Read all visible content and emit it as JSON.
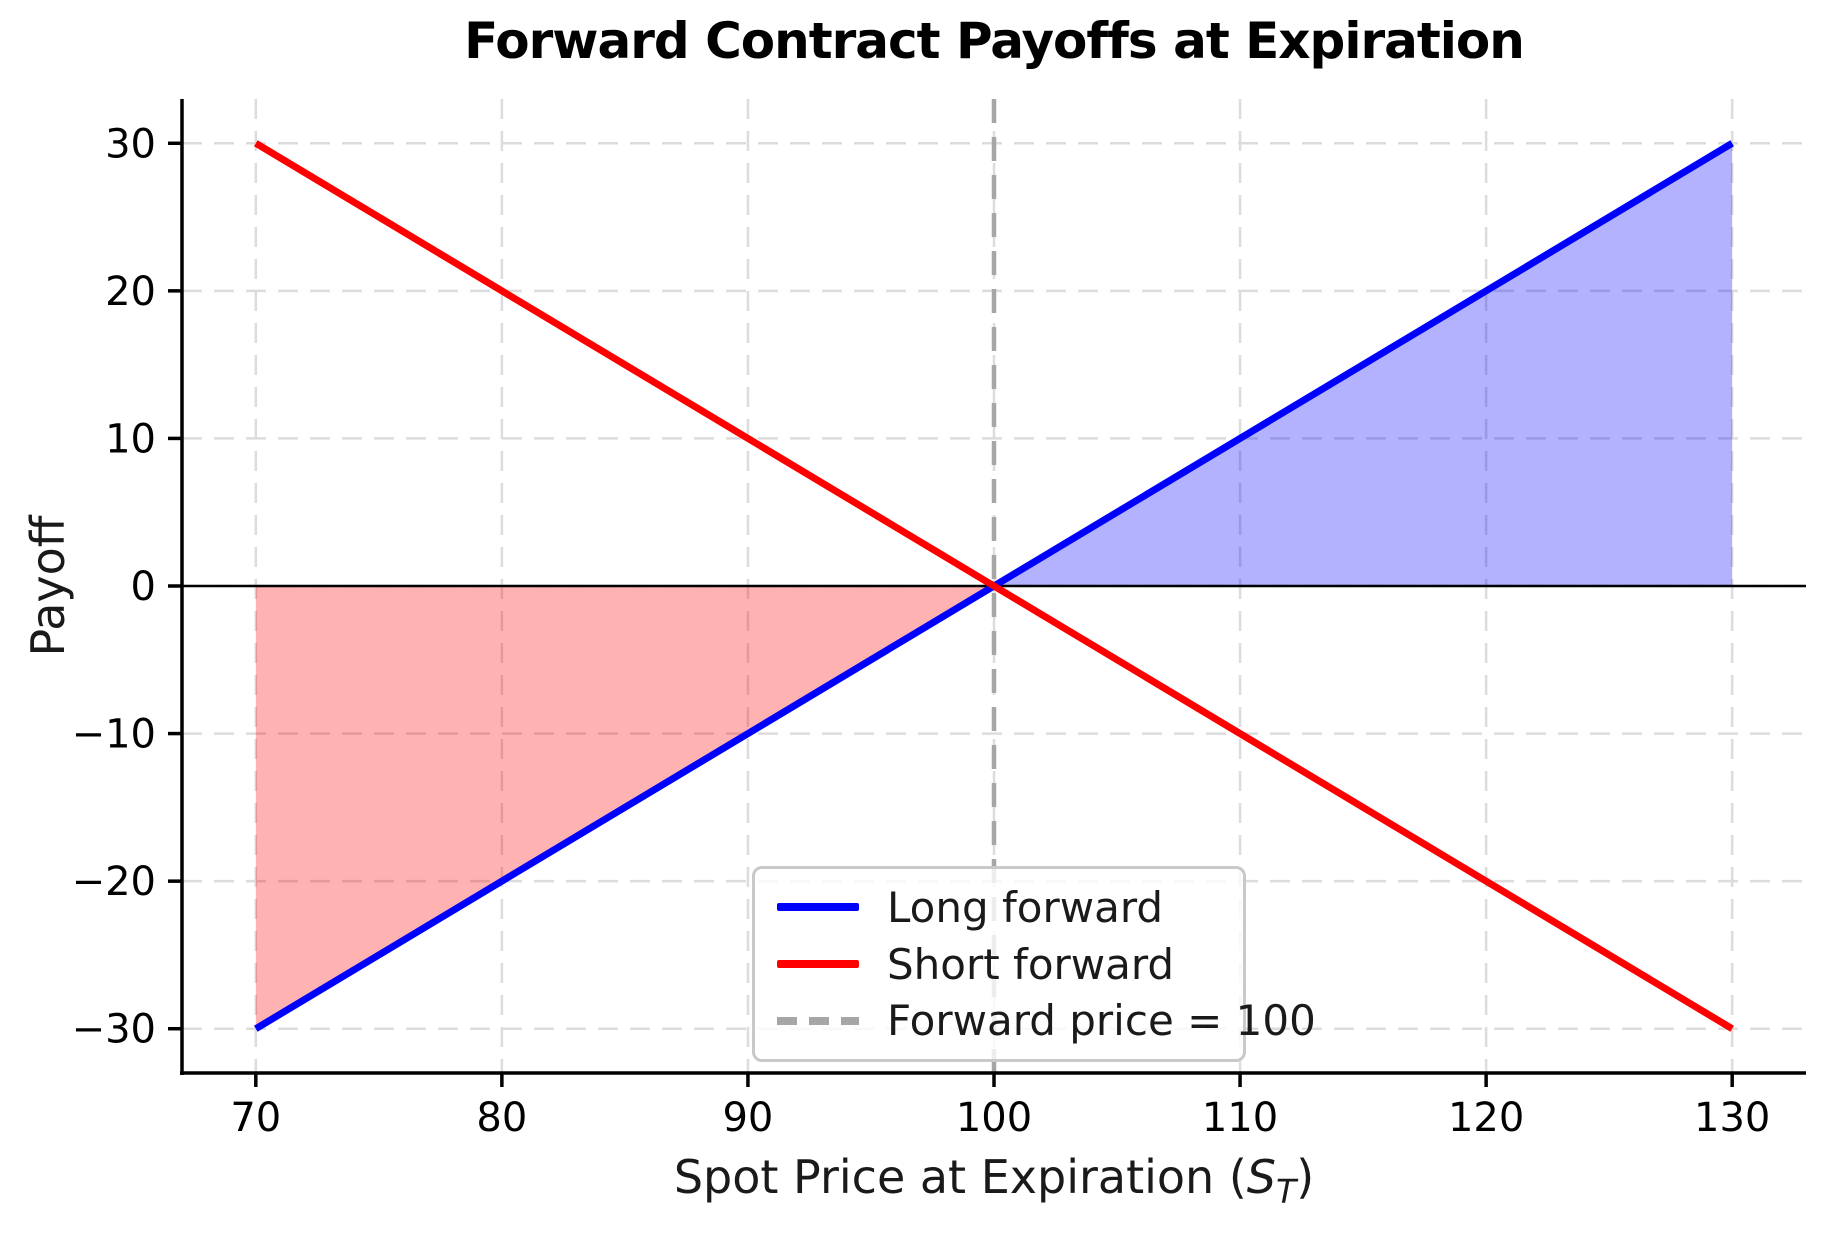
{
  "chart_data": {
    "type": "line",
    "title": "Forward Contract Payoffs at Expiration",
    "xlabel": {
      "prefix": "Spot Price at Expiration (",
      "variable": "S",
      "subscript": "T",
      "suffix": ")"
    },
    "ylabel": "Payoff",
    "xlim": [
      67,
      133
    ],
    "ylim": [
      -33,
      33
    ],
    "x_ticks": [
      70,
      80,
      90,
      100,
      110,
      120,
      130
    ],
    "y_ticks": [
      -30,
      -20,
      -10,
      0,
      10,
      20,
      30
    ],
    "grid": true,
    "grid_style": "dashed",
    "series": [
      {
        "name": "Long forward",
        "color": "#0000ff",
        "x": [
          70,
          130
        ],
        "y": [
          -30,
          30
        ]
      },
      {
        "name": "Short forward",
        "color": "#ff0000",
        "x": [
          70,
          130
        ],
        "y": [
          30,
          -30
        ]
      }
    ],
    "reference_line": {
      "label": "Forward price = 100",
      "x": 100,
      "color": "#a6a6a6",
      "style": "dashed"
    },
    "zero_line": {
      "y": 0,
      "color": "#000000"
    },
    "fills": [
      {
        "name": "long-gain-region",
        "color": "rgba(0,0,255,0.30)",
        "x_range": [
          100,
          130
        ],
        "series": "Long forward",
        "baseline": 0
      },
      {
        "name": "long-loss-region",
        "color": "rgba(255,0,0,0.30)",
        "x_range": [
          70,
          100
        ],
        "series": "Long forward",
        "baseline": 0
      }
    ],
    "legend": {
      "position": "lower center"
    },
    "colors": {
      "grid": "#dcdcdc",
      "axis": "#000000",
      "tick_text": "#000000"
    }
  }
}
